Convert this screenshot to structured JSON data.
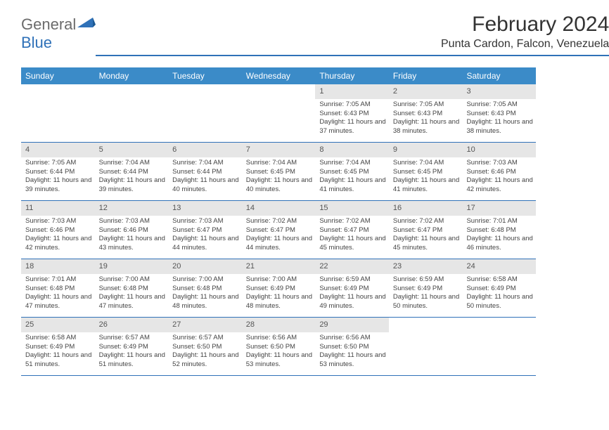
{
  "branding": {
    "logo_general": "General",
    "logo_blue": "Blue",
    "logo_triangle_color": "#2f71b8"
  },
  "title": {
    "month_year": "February 2024",
    "location": "Punta Cardon, Falcon, Venezuela"
  },
  "colors": {
    "header_band": "#3b8bc8",
    "accent_line": "#2f71b8",
    "day_number_bg": "#e6e6e6",
    "text": "#333333"
  },
  "day_names": [
    "Sunday",
    "Monday",
    "Tuesday",
    "Wednesday",
    "Thursday",
    "Friday",
    "Saturday"
  ],
  "weeks": [
    [
      null,
      null,
      null,
      null,
      {
        "n": "1",
        "sr": "7:05 AM",
        "ss": "6:43 PM",
        "dl": "11 hours and 37 minutes."
      },
      {
        "n": "2",
        "sr": "7:05 AM",
        "ss": "6:43 PM",
        "dl": "11 hours and 38 minutes."
      },
      {
        "n": "3",
        "sr": "7:05 AM",
        "ss": "6:43 PM",
        "dl": "11 hours and 38 minutes."
      }
    ],
    [
      {
        "n": "4",
        "sr": "7:05 AM",
        "ss": "6:44 PM",
        "dl": "11 hours and 39 minutes."
      },
      {
        "n": "5",
        "sr": "7:04 AM",
        "ss": "6:44 PM",
        "dl": "11 hours and 39 minutes."
      },
      {
        "n": "6",
        "sr": "7:04 AM",
        "ss": "6:44 PM",
        "dl": "11 hours and 40 minutes."
      },
      {
        "n": "7",
        "sr": "7:04 AM",
        "ss": "6:45 PM",
        "dl": "11 hours and 40 minutes."
      },
      {
        "n": "8",
        "sr": "7:04 AM",
        "ss": "6:45 PM",
        "dl": "11 hours and 41 minutes."
      },
      {
        "n": "9",
        "sr": "7:04 AM",
        "ss": "6:45 PM",
        "dl": "11 hours and 41 minutes."
      },
      {
        "n": "10",
        "sr": "7:03 AM",
        "ss": "6:46 PM",
        "dl": "11 hours and 42 minutes."
      }
    ],
    [
      {
        "n": "11",
        "sr": "7:03 AM",
        "ss": "6:46 PM",
        "dl": "11 hours and 42 minutes."
      },
      {
        "n": "12",
        "sr": "7:03 AM",
        "ss": "6:46 PM",
        "dl": "11 hours and 43 minutes."
      },
      {
        "n": "13",
        "sr": "7:03 AM",
        "ss": "6:47 PM",
        "dl": "11 hours and 44 minutes."
      },
      {
        "n": "14",
        "sr": "7:02 AM",
        "ss": "6:47 PM",
        "dl": "11 hours and 44 minutes."
      },
      {
        "n": "15",
        "sr": "7:02 AM",
        "ss": "6:47 PM",
        "dl": "11 hours and 45 minutes."
      },
      {
        "n": "16",
        "sr": "7:02 AM",
        "ss": "6:47 PM",
        "dl": "11 hours and 45 minutes."
      },
      {
        "n": "17",
        "sr": "7:01 AM",
        "ss": "6:48 PM",
        "dl": "11 hours and 46 minutes."
      }
    ],
    [
      {
        "n": "18",
        "sr": "7:01 AM",
        "ss": "6:48 PM",
        "dl": "11 hours and 47 minutes."
      },
      {
        "n": "19",
        "sr": "7:00 AM",
        "ss": "6:48 PM",
        "dl": "11 hours and 47 minutes."
      },
      {
        "n": "20",
        "sr": "7:00 AM",
        "ss": "6:48 PM",
        "dl": "11 hours and 48 minutes."
      },
      {
        "n": "21",
        "sr": "7:00 AM",
        "ss": "6:49 PM",
        "dl": "11 hours and 48 minutes."
      },
      {
        "n": "22",
        "sr": "6:59 AM",
        "ss": "6:49 PM",
        "dl": "11 hours and 49 minutes."
      },
      {
        "n": "23",
        "sr": "6:59 AM",
        "ss": "6:49 PM",
        "dl": "11 hours and 50 minutes."
      },
      {
        "n": "24",
        "sr": "6:58 AM",
        "ss": "6:49 PM",
        "dl": "11 hours and 50 minutes."
      }
    ],
    [
      {
        "n": "25",
        "sr": "6:58 AM",
        "ss": "6:49 PM",
        "dl": "11 hours and 51 minutes."
      },
      {
        "n": "26",
        "sr": "6:57 AM",
        "ss": "6:49 PM",
        "dl": "11 hours and 51 minutes."
      },
      {
        "n": "27",
        "sr": "6:57 AM",
        "ss": "6:50 PM",
        "dl": "11 hours and 52 minutes."
      },
      {
        "n": "28",
        "sr": "6:56 AM",
        "ss": "6:50 PM",
        "dl": "11 hours and 53 minutes."
      },
      {
        "n": "29",
        "sr": "6:56 AM",
        "ss": "6:50 PM",
        "dl": "11 hours and 53 minutes."
      },
      null,
      null
    ]
  ],
  "labels": {
    "sunrise": "Sunrise:",
    "sunset": "Sunset:",
    "daylight": "Daylight:"
  }
}
